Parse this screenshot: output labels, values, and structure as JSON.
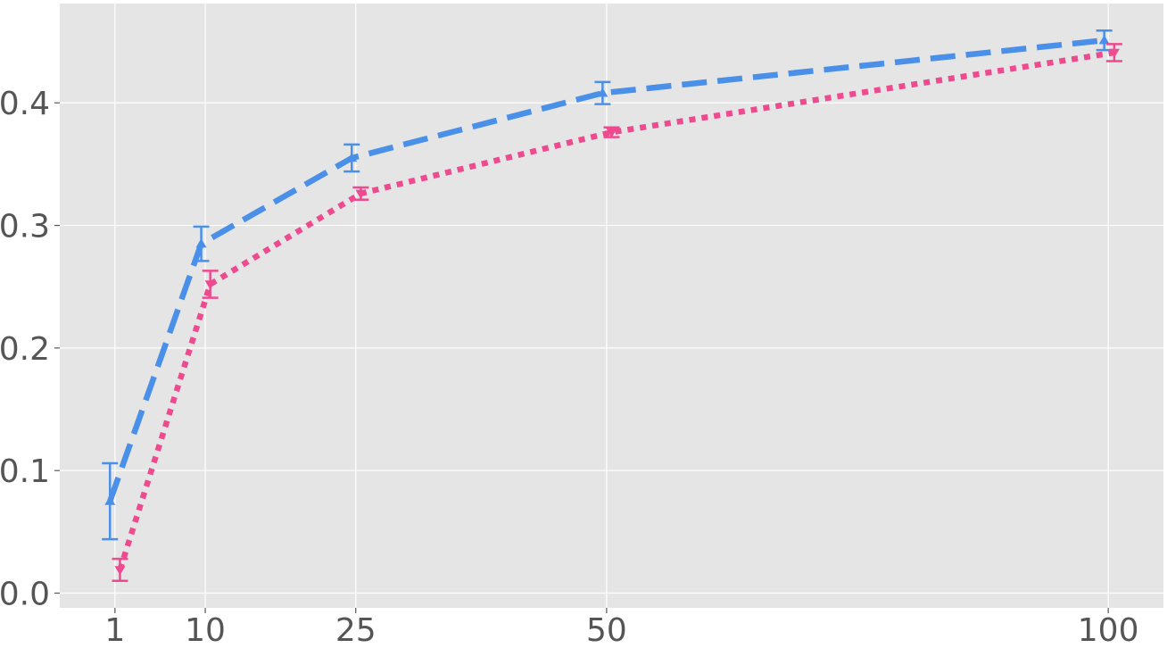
{
  "chart_data": {
    "type": "line",
    "title": "",
    "xlabel": "",
    "ylabel": "",
    "x_ticks": [
      1,
      10,
      25,
      50,
      100
    ],
    "y_ticks": [
      0.0,
      0.1,
      0.2,
      0.3,
      0.4
    ],
    "x_tick_labels": [
      "1",
      "10",
      "25",
      "50",
      "100"
    ],
    "y_tick_labels": [
      "0.0",
      "0.1",
      "0.2",
      "0.3",
      "0.4"
    ],
    "xlim": [
      -4.5,
      105.5
    ],
    "ylim": [
      -0.012,
      0.481
    ],
    "grid": true,
    "series": [
      {
        "color": "#4a90e8",
        "line_style": "dashed",
        "marker": "triangle-up",
        "points": [
          {
            "x": 0.5,
            "y": 0.075,
            "err": 0.031
          },
          {
            "x": 9.6,
            "y": 0.285,
            "err": 0.014
          },
          {
            "x": 24.6,
            "y": 0.355,
            "err": 0.011
          },
          {
            "x": 49.6,
            "y": 0.408,
            "err": 0.009
          },
          {
            "x": 99.6,
            "y": 0.451,
            "err": 0.008
          }
        ]
      },
      {
        "color": "#ee4a90",
        "line_style": "dotted",
        "marker": "triangle-down",
        "points": [
          {
            "x": 1.5,
            "y": 0.019,
            "err": 0.009
          },
          {
            "x": 10.5,
            "y": 0.252,
            "err": 0.011
          },
          {
            "x": 25.5,
            "y": 0.326,
            "err": 0.005
          },
          {
            "x": 50.5,
            "y": 0.376,
            "err": 0.004
          },
          {
            "x": 100.6,
            "y": 0.441,
            "err": 0.007
          }
        ]
      }
    ]
  }
}
